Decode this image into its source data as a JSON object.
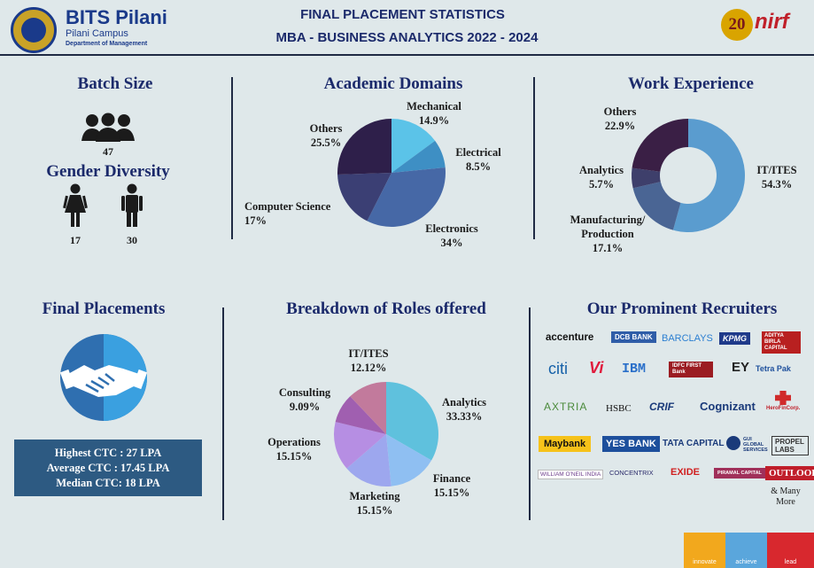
{
  "header": {
    "org_name": "BITS Pilani",
    "campus": "Pilani Campus",
    "department": "Department of Management",
    "title_line1": "FINAL PLACEMENT STATISTICS",
    "title_line2": "MBA - BUSINESS ANALYTICS 2022 - 2024",
    "badge_number": "20",
    "badge_label": "nirf"
  },
  "batch": {
    "title": "Batch Size",
    "size": "47"
  },
  "gender": {
    "title": "Gender Diversity",
    "female": "17",
    "male": "30"
  },
  "academic": {
    "title": "Academic Domains",
    "slices": [
      {
        "name": "Mechanical",
        "label": "14.9%",
        "value": 14.9,
        "color": "#5bc3e8"
      },
      {
        "name": "Electrical",
        "label": "8.5%",
        "value": 8.5,
        "color": "#3e8fc4"
      },
      {
        "name": "Electronics",
        "label": "34%",
        "value": 34,
        "color": "#4668a6"
      },
      {
        "name": "Computer Science",
        "label": "17%",
        "value": 17,
        "color": "#3b3f74"
      },
      {
        "name": "Others",
        "label": "25.5%",
        "value": 25.5,
        "color": "#2e1f4a"
      }
    ]
  },
  "work": {
    "title": "Work Experience",
    "slices": [
      {
        "name": "IT/ITES",
        "label": "54.3%",
        "value": 54.3,
        "color": "#5a9ccf"
      },
      {
        "name": "Manufacturing/ Production",
        "label": "17.1%",
        "value": 17.1,
        "color": "#4a6594"
      },
      {
        "name": "Analytics",
        "label": "5.7%",
        "value": 5.7,
        "color": "#3e3f6b"
      },
      {
        "name": "Others",
        "label": "22.9%",
        "value": 22.9,
        "color": "#3a1f45"
      }
    ]
  },
  "placements": {
    "title": "Final Placements",
    "highest": "Highest CTC : 27 LPA",
    "average": "Average CTC : 17.45 LPA",
    "median": "Median CTC: 18 LPA"
  },
  "roles": {
    "title": "Breakdown of Roles offered",
    "slices": [
      {
        "name": "Analytics",
        "label": "33.33%",
        "value": 33.33,
        "color": "#5fc1dd"
      },
      {
        "name": "Finance",
        "label": "15.15%",
        "value": 15.15,
        "color": "#8fbff2"
      },
      {
        "name": "Marketing",
        "label": "15.15%",
        "value": 15.15,
        "color": "#9da7ee"
      },
      {
        "name": "Operations",
        "label": "15.15%",
        "value": 15.15,
        "color": "#b68ee3"
      },
      {
        "name": "Consulting",
        "label": "9.09%",
        "value": 9.09,
        "color": "#a05fb0"
      },
      {
        "name": "IT/ITES",
        "label": "12.12%",
        "value": 12.12,
        "color": "#c27a9c"
      }
    ]
  },
  "recruiters": {
    "title": "Our Prominent Recruiters",
    "logos": [
      "accenture",
      "DCB BANK",
      "BARCLAYS",
      "KPMG",
      "ADITYA BIRLA CAPITAL",
      "citi",
      "Vi",
      "IBM",
      "IDFC FIRST Bank",
      "EY",
      "Tetra Pak",
      "AXTRIA",
      "HSBC",
      "CRIF",
      "Cognizant",
      "HeroFinCorp.",
      "Maybank",
      "YES BANK",
      "TATA CAPITAL",
      "GUI GLOBAL SERVICES",
      "PROPEL LABS",
      "WILLIAM O'NEIL INDIA",
      "CONCENTRIX",
      "EXIDE",
      "PIRAMAL CAPITAL",
      "OUTLOOK"
    ],
    "more": "& Many More"
  },
  "corner": {
    "word1": "innovate",
    "word2": "achieve",
    "word3": "lead"
  },
  "colors": {
    "navy": "#1b2a6b",
    "ctc_box": "#2d5a82"
  }
}
